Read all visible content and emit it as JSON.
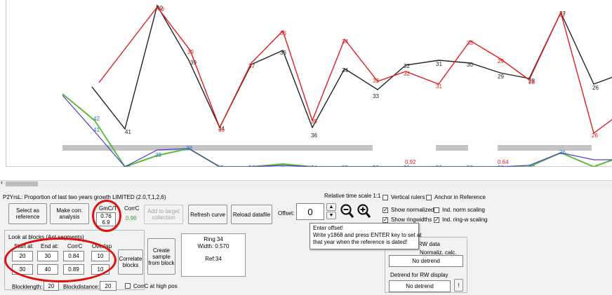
{
  "series": {
    "black": {
      "color": "#222222",
      "labels": [
        "41",
        "40",
        "39",
        "34",
        "37",
        "36",
        "36",
        "34",
        "33",
        "32",
        "31",
        "30",
        "29",
        "28",
        "37",
        "26"
      ]
    },
    "red": {
      "color": "#e21c1c",
      "labels": [
        "40",
        "39",
        "36",
        "37",
        "36",
        "35",
        "34",
        "33",
        "32",
        "31",
        "35",
        "29",
        "28",
        "37",
        "26"
      ]
    },
    "green_labels": [
      "42",
      "41",
      "40",
      "39",
      "38",
      "37",
      "36",
      "35",
      "34",
      "33",
      "32",
      "31",
      "30",
      "29",
      "28",
      "27",
      "26"
    ],
    "green_color": "#5bbd3a",
    "blue_color": "#4e3fd1",
    "red_ratio_labels": [
      "0.92",
      "0.64"
    ]
  },
  "toolbar": {
    "title": "P2YrsL: Proportion of last two years growth LIMITED (2.0,T,1,2,6)",
    "time_scale": "Relative time scale 1:1",
    "select_ref": "Select as reference",
    "make_corr": "Make corr. analysis",
    "gmcvt_label": "GmC/T",
    "gmcvt_val1": "0.76",
    "gmcvt_val2": "6.9",
    "corrc_label": "CorrC",
    "corrc_val": "0.96",
    "add_target": "Add to target collection",
    "refresh": "Refresh curve",
    "reload": "Reload datafile",
    "offset_label": "Offset:",
    "offset_value": "0",
    "vertical_rulers": "Vertical rulers",
    "anchor_ref": "Anchor in Reference",
    "show_normalized": "Show normalized",
    "ind_norm_scaling": "Ind. norm scaling",
    "show_ringwidths": "Show ringwidths",
    "ind_ringw_scaling": "Ind. ring-w scaling"
  },
  "blocks": {
    "look_at": "Look at blocks (Ant segments)",
    "start_label": "Start at:",
    "end_label": "End at:",
    "corrc_label": "CorrC",
    "overlap_label": "Overlap",
    "rows": [
      {
        "start": "20",
        "end": "30",
        "corrc": "0.84",
        "overlap": "10"
      },
      {
        "start": "30",
        "end": "40",
        "corrc": "0.89",
        "overlap": "10"
      }
    ],
    "correlate_blocks": "Correlate blocks",
    "create_sample": "Create sample from block",
    "blocklength_label": "Blocklength:",
    "blocklength": "20",
    "blockdistance_label": "Blockdistance:",
    "blockdistance": "20",
    "corrc_high": "CorrC at high pos"
  },
  "ring_info": {
    "ring": "Ring 34",
    "width": "Width: 0.570",
    "ref": "Ref:34"
  },
  "tooltip": {
    "line1": "Enter offset!",
    "line2": "Write y1868 and press ENTER key to set at",
    "line3": "that year when the reference is dated!"
  },
  "detrend": {
    "rw_data": "RW data",
    "normaliz": "Normaliz. calc.",
    "no_detrend1": "No detrend",
    "display_label": "Detrend for RW display",
    "no_detrend2": "No detrend",
    "excl": "!"
  }
}
